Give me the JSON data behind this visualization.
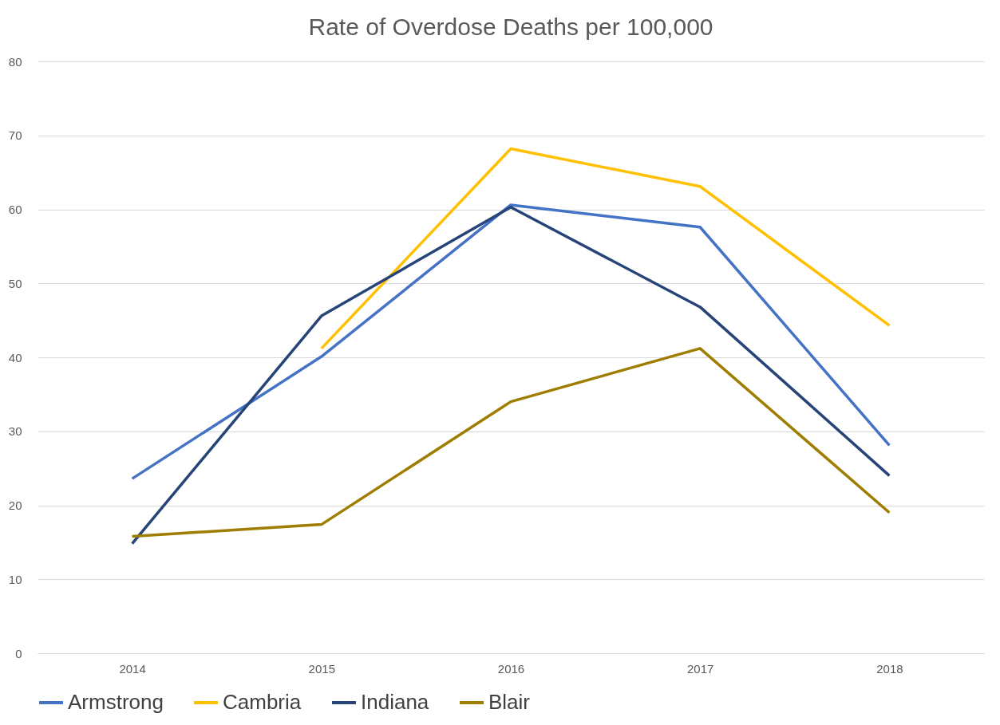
{
  "chart_data": {
    "type": "line",
    "title": "Rate of Overdose Deaths per 100,000",
    "categories": [
      "2014",
      "2015",
      "2016",
      "2017",
      "2018"
    ],
    "series": [
      {
        "name": "Armstrong",
        "color": "#4472c4",
        "values": [
          23.6,
          40.1,
          60.6,
          57.6,
          28.1
        ]
      },
      {
        "name": "Cambria",
        "color": "#ffc000",
        "values": [
          null,
          41.2,
          68.2,
          63.1,
          44.3
        ]
      },
      {
        "name": "Indiana",
        "color": "#264478",
        "values": [
          14.8,
          45.6,
          60.3,
          46.8,
          24.0
        ]
      },
      {
        "name": "Blair",
        "color": "#9e7d00",
        "values": [
          15.8,
          17.4,
          34.0,
          41.2,
          19.0
        ]
      }
    ],
    "ylim": [
      0,
      80
    ],
    "yticks": [
      0,
      10,
      20,
      30,
      40,
      50,
      60,
      70,
      80
    ],
    "grid": "y",
    "legend": "bottom",
    "marker": "none",
    "line_style": "solid"
  }
}
